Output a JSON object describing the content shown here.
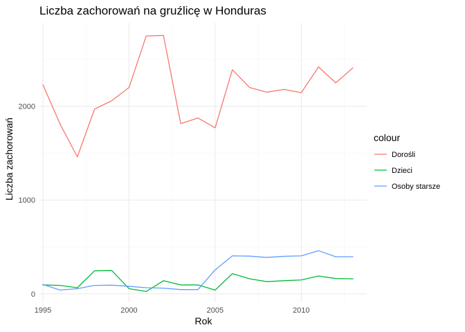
{
  "chart_data": {
    "type": "line",
    "title": "Liczba zachorowań na gruźlicę w Honduras",
    "xlabel": "Rok",
    "ylabel": "Liczba zachorowań",
    "legend_title": "colour",
    "legend_position": "right",
    "grid": true,
    "xlim": [
      1994.8,
      2013.8
    ],
    "ylim": [
      -90,
      2890
    ],
    "x_ticks": [
      1995,
      2000,
      2005,
      2010
    ],
    "y_ticks": [
      0,
      1000,
      2000
    ],
    "x": [
      1995,
      1996,
      1997,
      1998,
      1999,
      2000,
      2001,
      2002,
      2003,
      2004,
      2005,
      2006,
      2007,
      2008,
      2009,
      2010,
      2011,
      2012,
      2013
    ],
    "series": [
      {
        "name": "Dorośli",
        "color": "#F8766D",
        "values": [
          2230,
          1810,
          1460,
          1970,
          2060,
          2200,
          2750,
          2755,
          1815,
          1875,
          1770,
          2390,
          2200,
          2150,
          2180,
          2145,
          2420,
          2250,
          2410
        ]
      },
      {
        "name": "Dzieci",
        "color": "#00BA38",
        "values": [
          95,
          90,
          65,
          245,
          248,
          55,
          25,
          140,
          95,
          95,
          40,
          215,
          160,
          130,
          140,
          148,
          190,
          163,
          160
        ]
      },
      {
        "name": "Osoby starsze",
        "color": "#619CFF",
        "values": [
          100,
          40,
          55,
          90,
          92,
          80,
          65,
          60,
          45,
          45,
          255,
          405,
          402,
          388,
          400,
          405,
          460,
          395,
          395
        ]
      }
    ]
  }
}
